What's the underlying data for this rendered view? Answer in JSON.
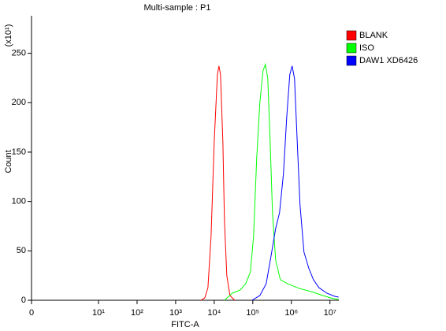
{
  "chart_data": {
    "type": "line",
    "title": "Multi-sample : P1",
    "x_label": "FITC-A",
    "y_label": "Count",
    "y_multiplier": "(x10¹)",
    "xscale": "log",
    "xlim": [
      0,
      17000000
    ],
    "xticks": [
      0,
      {
        "value": 10,
        "label": "10¹"
      },
      {
        "value": 100,
        "label": "10²"
      },
      {
        "value": 1000,
        "label": "10³"
      },
      {
        "value": 10000,
        "label": "10⁴"
      },
      {
        "value": 100000,
        "label": "10⁵"
      },
      {
        "value": 1000000,
        "label": "10⁶"
      },
      {
        "value": 10000000,
        "label": "10⁷"
      }
    ],
    "ylim": [
      0,
      288
    ],
    "yticks": [
      0,
      50,
      100,
      150,
      200,
      250
    ],
    "legend": "right",
    "series": [
      {
        "name": "BLANK",
        "color": "#ff0000",
        "x": [
          4500,
          5690,
          6870,
          8280,
          10000,
          12080,
          13250,
          14560,
          16750,
          18410,
          21220,
          25590,
          33950
        ],
        "values": [
          0,
          2.4,
          12.8,
          64.7,
          160.5,
          228.4,
          237.2,
          228.4,
          160.5,
          80.7,
          24.8,
          4.8,
          0
        ]
      },
      {
        "name": "ISO",
        "color": "#00ff00",
        "x": [
          18400,
          29400,
          47100,
          65500,
          86800,
          104700,
          126500,
          152600,
          184100,
          212200,
          244400,
          281400,
          324000,
          391000,
          517800,
          790600,
          1600000,
          3236000,
          6550000,
          10470000,
          16750000
        ],
        "values": [
          0,
          7.2,
          10.4,
          16.8,
          28.8,
          64.7,
          144.6,
          200.5,
          232.4,
          238.8,
          224.4,
          160.5,
          88.7,
          40.7,
          20.8,
          16.8,
          12,
          8.8,
          4.8,
          2.4,
          0.8
        ]
      },
      {
        "name": "DAW1 XD6426",
        "color": "#0000ff",
        "x": [
          95500,
          152600,
          222400,
          309000,
          391000,
          494000,
          625000,
          755000,
          910000,
          1048000,
          1208000,
          1390000,
          1675000,
          2123000,
          2814000,
          3727000,
          5176000,
          8280000,
          13240000,
          16750000
        ],
        "values": [
          0,
          4.8,
          16.8,
          48.7,
          72.7,
          88.7,
          128.6,
          184.5,
          228.4,
          237.2,
          224.4,
          168.5,
          96.6,
          48.7,
          32.7,
          20.8,
          12.8,
          7.2,
          4,
          3.2
        ]
      }
    ]
  }
}
